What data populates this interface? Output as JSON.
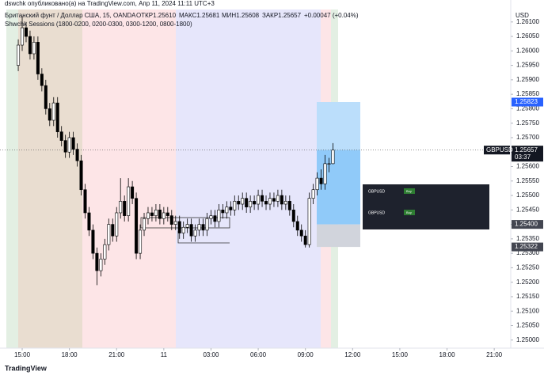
{
  "header": {
    "published": "dswchk опубликовано(а) на TradingView.com, Апр 11, 2024 11:11 UTC+3",
    "symbol": "Британский фунт / Доллар США, 15, OANDA",
    "open": "ОТКР1.25610",
    "high": "МАКС1.25681",
    "low": "МИН1.25608",
    "close": "ЗАКР1.25657",
    "change": "+0.00047 (+0.04%)",
    "indicator": "Shwchk Sessions (1800-0200, 0200-0300, 0300-1200, 0800-1800)"
  },
  "chart_data": {
    "type": "candlestick",
    "currency": "USD",
    "up_color": "#ffffff",
    "down_color": "#000000",
    "border_color": "#000000",
    "x": [
      -0.25,
      0,
      0.25,
      0.5,
      0.75,
      1,
      1.25,
      1.5,
      1.75,
      2,
      2.25,
      2.5,
      2.75,
      3,
      3.25,
      3.5,
      3.75,
      4,
      4.25,
      4.5,
      4.75,
      5,
      5.25,
      5.5,
      5.75,
      6,
      6.25,
      6.5,
      6.75,
      7,
      7.25,
      7.5,
      7.75,
      8,
      8.25,
      8.5,
      8.75,
      9,
      9.25,
      9.5,
      9.75,
      10,
      10.25,
      10.5,
      10.75,
      11,
      11.25,
      11.5,
      11.75,
      12,
      12.25,
      12.5,
      12.75,
      13,
      13.25,
      13.5,
      13.75,
      14,
      14.25,
      14.5,
      14.75,
      15,
      15.25,
      15.5,
      15.75,
      16,
      16.25,
      16.5,
      16.75,
      17,
      17.25,
      17.5,
      17.75,
      18,
      18.25,
      18.5,
      18.75,
      19,
      19.25,
      19.5,
      19.75
    ],
    "open": [
      1.2595,
      1.2602,
      1.2608,
      1.2605,
      1.2599,
      1.2603,
      1.2592,
      1.2588,
      1.258,
      1.2576,
      1.2582,
      1.2572,
      1.2569,
      1.2565,
      1.257,
      1.2566,
      1.2562,
      1.2552,
      1.2544,
      1.2538,
      1.253,
      1.2524,
      1.2528,
      1.2533,
      1.254,
      1.2536,
      1.2544,
      1.2548,
      1.2543,
      1.2553,
      1.2549,
      1.253,
      1.2538,
      1.2542,
      1.2544,
      1.2543,
      1.2545,
      1.2542,
      1.2544,
      1.2543,
      1.254,
      1.2541,
      1.2537,
      1.2539,
      1.254,
      1.2536,
      1.2538,
      1.254,
      1.2538,
      1.2542,
      1.2543,
      1.2541,
      1.2545,
      1.2544,
      1.2546,
      1.2545,
      1.2548,
      1.2547,
      1.2549,
      1.2546,
      1.2548,
      1.2547,
      1.255,
      1.2548,
      1.2547,
      1.2549,
      1.2548,
      1.255,
      1.2547,
      1.2548,
      1.2545,
      1.2541,
      1.2538,
      1.2536,
      1.2533,
      1.2549,
      1.2552,
      1.2556,
      1.2554,
      1.2561,
      1.2561
    ],
    "high": [
      1.2604,
      1.2612,
      1.261,
      1.2607,
      1.2605,
      1.2605,
      1.2594,
      1.259,
      1.2582,
      1.2584,
      1.2584,
      1.2574,
      1.2571,
      1.2572,
      1.2572,
      1.2568,
      1.2564,
      1.2554,
      1.2546,
      1.254,
      1.2532,
      1.253,
      1.2535,
      1.2542,
      1.2542,
      1.2546,
      1.2556,
      1.255,
      1.2556,
      1.2555,
      1.2551,
      1.254,
      1.2544,
      1.2546,
      1.2546,
      1.2547,
      1.2547,
      1.2546,
      1.2546,
      1.2545,
      1.2543,
      1.2543,
      1.2541,
      1.2542,
      1.2542,
      1.254,
      1.2542,
      1.2542,
      1.2544,
      1.2545,
      1.2545,
      1.2547,
      1.2547,
      1.2548,
      1.2548,
      1.255,
      1.255,
      1.2551,
      1.2551,
      1.255,
      1.255,
      1.2552,
      1.2552,
      1.255,
      1.2551,
      1.2551,
      1.2552,
      1.2552,
      1.255,
      1.255,
      1.2547,
      1.2543,
      1.254,
      1.2538,
      1.2551,
      1.2554,
      1.2558,
      1.2559,
      1.2564,
      1.2563,
      1.25681
    ],
    "low": [
      1.2593,
      1.26,
      1.2603,
      1.2597,
      1.2597,
      1.259,
      1.2586,
      1.2578,
      1.2574,
      1.2574,
      1.257,
      1.2567,
      1.2563,
      1.2563,
      1.2564,
      1.256,
      1.255,
      1.2542,
      1.2536,
      1.2528,
      1.2519,
      1.2522,
      1.2526,
      1.2531,
      1.2534,
      1.2534,
      1.2542,
      1.2541,
      1.2541,
      1.2547,
      1.2528,
      1.2528,
      1.2536,
      1.254,
      1.2541,
      1.2541,
      1.254,
      1.254,
      1.2541,
      1.2538,
      1.2538,
      1.2535,
      1.2535,
      1.2537,
      1.2534,
      1.2534,
      1.2536,
      1.2536,
      1.2536,
      1.254,
      1.2539,
      1.2539,
      1.2542,
      1.2542,
      1.2543,
      1.2543,
      1.2545,
      1.2545,
      1.2544,
      1.2544,
      1.2545,
      1.2545,
      1.2546,
      1.2545,
      1.2545,
      1.2546,
      1.2546,
      1.2545,
      1.2545,
      1.2543,
      1.2539,
      1.2536,
      1.2534,
      1.2532,
      1.2532,
      1.2547,
      1.255,
      1.2552,
      1.2552,
      1.2558,
      1.25608
    ],
    "close": [
      1.2602,
      1.2608,
      1.2605,
      1.2599,
      1.2603,
      1.2592,
      1.2588,
      1.258,
      1.2576,
      1.2582,
      1.2572,
      1.2569,
      1.2565,
      1.257,
      1.2566,
      1.2562,
      1.2552,
      1.2544,
      1.2538,
      1.253,
      1.2524,
      1.2528,
      1.2533,
      1.254,
      1.2536,
      1.2544,
      1.2548,
      1.2543,
      1.2553,
      1.2549,
      1.253,
      1.2538,
      1.2542,
      1.2544,
      1.2543,
      1.2545,
      1.2542,
      1.2544,
      1.2543,
      1.254,
      1.2541,
      1.2537,
      1.2539,
      1.254,
      1.2536,
      1.2538,
      1.254,
      1.2538,
      1.2542,
      1.2543,
      1.2541,
      1.2545,
      1.2544,
      1.2546,
      1.2545,
      1.2548,
      1.2547,
      1.2549,
      1.2546,
      1.2548,
      1.2547,
      1.255,
      1.2548,
      1.2547,
      1.2549,
      1.2548,
      1.255,
      1.2547,
      1.2548,
      1.2545,
      1.2541,
      1.2538,
      1.2536,
      1.2533,
      1.2549,
      1.2552,
      1.2556,
      1.2554,
      1.2561,
      1.2561,
      1.25657
    ],
    "xlim": [
      -1.41,
      31.05
    ],
    "xticks": [
      {
        "value": 0,
        "label": "15:00"
      },
      {
        "value": 3,
        "label": "18:00"
      },
      {
        "value": 6,
        "label": "21:00"
      },
      {
        "value": 9,
        "label": "11"
      },
      {
        "value": 12,
        "label": "03:00"
      },
      {
        "value": 15,
        "label": "06:00"
      },
      {
        "value": 18,
        "label": "09:00"
      },
      {
        "value": 21,
        "label": "12:00"
      },
      {
        "value": 24,
        "label": "15:00"
      },
      {
        "value": 27,
        "label": "18:00"
      },
      {
        "value": 30,
        "label": "21:00"
      }
    ],
    "ylim": [
      1.24972,
      1.26176
    ],
    "yticks": [
      {
        "value": 1.261,
        "label": "1.26100"
      },
      {
        "value": 1.2605,
        "label": "1.26050"
      },
      {
        "value": 1.26,
        "label": "1.26000"
      },
      {
        "value": 1.2595,
        "label": "1.25950"
      },
      {
        "value": 1.259,
        "label": "1.25900"
      },
      {
        "value": 1.2585,
        "label": "1.25850"
      },
      {
        "value": 1.258,
        "label": "1.25800"
      },
      {
        "value": 1.2575,
        "label": "1.25750"
      },
      {
        "value": 1.257,
        "label": "1.25700"
      },
      {
        "value": 1.2565,
        "label": "1.25650"
      },
      {
        "value": 1.256,
        "label": "1.25600"
      },
      {
        "value": 1.2555,
        "label": "1.25550"
      },
      {
        "value": 1.255,
        "label": "1.25500"
      },
      {
        "value": 1.2545,
        "label": "1.25450"
      },
      {
        "value": 1.254,
        "label": "1.25400"
      },
      {
        "value": 1.2535,
        "label": "1.25350"
      },
      {
        "value": 1.253,
        "label": "1.25300"
      },
      {
        "value": 1.2525,
        "label": "1.25250"
      },
      {
        "value": 1.252,
        "label": "1.25200"
      },
      {
        "value": 1.2515,
        "label": "1.25150"
      },
      {
        "value": 1.251,
        "label": "1.25100"
      },
      {
        "value": 1.2505,
        "label": "1.25050"
      },
      {
        "value": 1.25,
        "label": "1.25000"
      }
    ],
    "position": {
      "target": {
        "value": 1.25823,
        "label": "1.25823"
      },
      "entry": {
        "value": 1.254,
        "label": "1.25400"
      },
      "stop": {
        "value": 1.25322,
        "label": "1.25322"
      }
    },
    "last_price": {
      "value": 1.25657,
      "label": "1.25657",
      "symbol": "GBPUSD",
      "countdown": "03:37"
    }
  },
  "trades": [
    {
      "symbol": "GBPUSD",
      "side": "Buy"
    },
    {
      "symbol": "GBPUSD",
      "side": "Buy"
    }
  ],
  "footer": {
    "logo": "TradingView"
  }
}
